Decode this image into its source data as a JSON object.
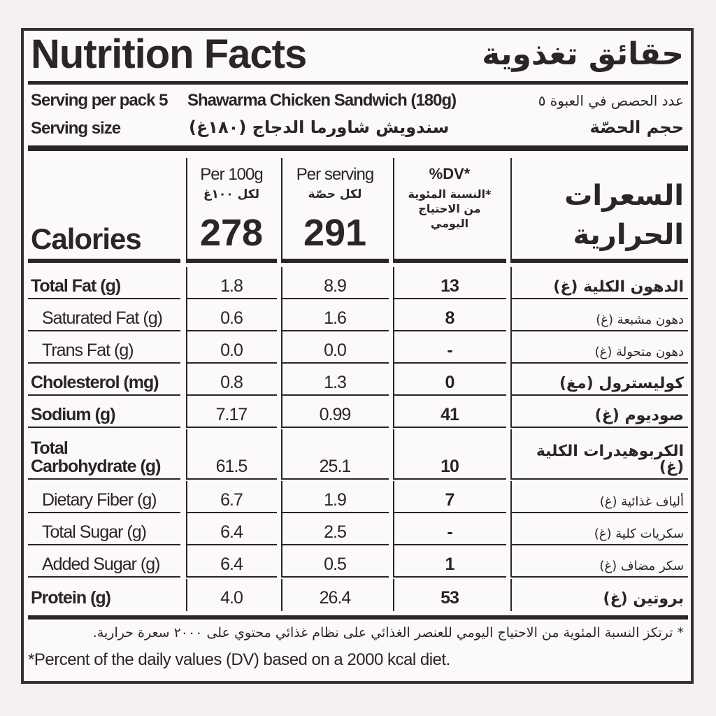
{
  "header": {
    "title": "Nutrition Facts",
    "title_ar": "حقائق تغذوية"
  },
  "serving": {
    "per_pack": "Serving per pack 5",
    "product": "Shawarma Chicken Sandwich (180g)",
    "per_pack_ar": "عدد الحصص في العبوة ٥",
    "size": "Serving size",
    "product_ar": "سندويش شاورما الدجاج (١٨٠غ)",
    "size_ar": "حجم الحصّة"
  },
  "table": {
    "head": {
      "calories": "Calories",
      "calories_ar": "السعرات الحرارية",
      "per100": "Per 100g",
      "per100_ar": "لكل ١٠٠غ",
      "per100_value": "278",
      "serving": "Per serving",
      "serving_ar": "لكل حصّة",
      "serving_value": "291",
      "dv": "%DV*",
      "dv_ar": "*النسبة المئوية من الاحتياج اليومي"
    },
    "rows": [
      [
        "Total Fat (g)",
        "1.8",
        "8.9",
        "13",
        "الدهون الكلية (غ)"
      ],
      [
        "Saturated Fat (g)",
        "0.6",
        "1.6",
        "8",
        "دهون مشبعة (غ)"
      ],
      [
        "Trans Fat (g)",
        "0.0",
        "0.0",
        "-",
        "دهون متحولة (غ)"
      ],
      [
        "Cholesterol (mg)",
        "0.8",
        "1.3",
        "0",
        "كوليسترول (مغ)"
      ],
      [
        "Sodium (g)",
        "7.17",
        "0.99",
        "41",
        "صوديوم (غ)"
      ],
      [
        "Total\nCarbohydrate (g)",
        "61.5",
        "25.1",
        "10",
        "الكربوهيدرات الكلية (غ)"
      ],
      [
        "Dietary Fiber (g)",
        "6.7",
        "1.9",
        "7",
        "ألياف غذائية (غ)"
      ],
      [
        "Total Sugar (g)",
        "6.4",
        "2.5",
        "-",
        "سكريات كلية (غ)"
      ],
      [
        "Added Sugar (g)",
        "6.4",
        "0.5",
        "1",
        "سكر مضاف (غ)"
      ],
      [
        "Protein (g)",
        "4.0",
        "26.4",
        "53",
        "بروتين (غ)"
      ]
    ]
  },
  "footnote_ar": "* ترتكز النسبة المئوية من الاحتياج اليومي للعنصر الغذائي على نظام غذائي محتوي على ٢٠٠٠ سعرة حرارية.",
  "footnote": "*Percent of the daily values (DV) based on a 2000 kcal diet."
}
